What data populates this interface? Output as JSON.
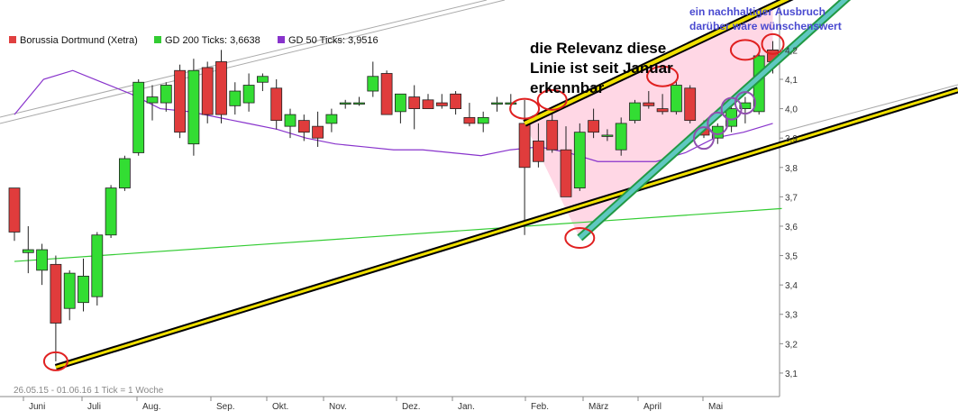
{
  "legend": [
    {
      "label": "Borussia Dortmund (Xetra)",
      "color": "#e04040"
    },
    {
      "label": "GD 200 Ticks: 3,6638",
      "color": "#33cc33"
    },
    {
      "label": "GD 50 Ticks: 3,9516",
      "color": "#8833cc"
    }
  ],
  "annotation_main": [
    "die Relevanz diese",
    "Linie ist seit Januar",
    "erkennbar"
  ],
  "annotation_blue": [
    "ein nachhaltiger Ausbruch",
    "darüber wäre wünschenswert"
  ],
  "footer": "26.05.15 - 01.06.16   1 Tick = 1 Woche",
  "colors": {
    "up": "#33dd33",
    "down": "#e03c3c",
    "ma200": "#33cc33",
    "ma50": "#8833cc",
    "trend": "#f0e000",
    "channel": "#5fc8c0",
    "circle_red": "#e02020",
    "circle_purple": "#9050b0",
    "triangle": "#ffd0e0"
  },
  "chart_data": {
    "type": "candlestick",
    "title": "",
    "x_range": [
      "26.05.15",
      "01.06.16"
    ],
    "x_tick_labels": [
      "Juni",
      "Juli",
      "Aug.",
      "Sep.",
      "Okt.",
      "Nov.",
      "Dez.",
      "Jan.",
      "Feb.",
      "März",
      "April",
      "Mai"
    ],
    "y_tick_labels": [
      "3,1",
      "3,2",
      "3,3",
      "3,4",
      "3,5",
      "3,6",
      "3,7",
      "3,8",
      "3,9",
      "4,0",
      "4,1",
      "4,2"
    ],
    "ylim": [
      3.02,
      4.37
    ],
    "grid": false,
    "legend_position": "top-left",
    "candles": [
      {
        "o": 3.73,
        "h": 3.73,
        "l": 3.55,
        "c": 3.58
      },
      {
        "o": 3.51,
        "h": 3.6,
        "l": 3.44,
        "c": 3.52
      },
      {
        "o": 3.45,
        "h": 3.54,
        "l": 3.4,
        "c": 3.52
      },
      {
        "o": 3.47,
        "h": 3.5,
        "l": 3.14,
        "c": 3.27
      },
      {
        "o": 3.32,
        "h": 3.45,
        "l": 3.28,
        "c": 3.44
      },
      {
        "o": 3.34,
        "h": 3.49,
        "l": 3.31,
        "c": 3.43
      },
      {
        "o": 3.36,
        "h": 3.58,
        "l": 3.33,
        "c": 3.57
      },
      {
        "o": 3.57,
        "h": 3.74,
        "l": 3.56,
        "c": 3.73
      },
      {
        "o": 3.73,
        "h": 3.84,
        "l": 3.72,
        "c": 3.83
      },
      {
        "o": 3.85,
        "h": 4.1,
        "l": 3.84,
        "c": 4.09
      },
      {
        "o": 4.02,
        "h": 4.08,
        "l": 3.96,
        "c": 4.04
      },
      {
        "o": 4.02,
        "h": 4.09,
        "l": 3.99,
        "c": 4.08
      },
      {
        "o": 4.13,
        "h": 4.15,
        "l": 3.9,
        "c": 3.92
      },
      {
        "o": 3.88,
        "h": 4.17,
        "l": 3.84,
        "c": 4.13
      },
      {
        "o": 4.14,
        "h": 4.16,
        "l": 3.95,
        "c": 3.98
      },
      {
        "o": 4.16,
        "h": 4.2,
        "l": 3.95,
        "c": 3.98
      },
      {
        "o": 4.01,
        "h": 4.09,
        "l": 3.98,
        "c": 4.06
      },
      {
        "o": 4.02,
        "h": 4.12,
        "l": 3.99,
        "c": 4.08
      },
      {
        "o": 4.09,
        "h": 4.12,
        "l": 4.06,
        "c": 4.11
      },
      {
        "o": 4.07,
        "h": 4.1,
        "l": 3.93,
        "c": 3.96
      },
      {
        "o": 3.94,
        "h": 4.0,
        "l": 3.9,
        "c": 3.98
      },
      {
        "o": 3.96,
        "h": 3.98,
        "l": 3.89,
        "c": 3.92
      },
      {
        "o": 3.94,
        "h": 3.99,
        "l": 3.87,
        "c": 3.9
      },
      {
        "o": 3.95,
        "h": 4.0,
        "l": 3.92,
        "c": 3.98
      },
      {
        "o": 4.02,
        "h": 4.03,
        "l": 4.0,
        "c": 4.02
      },
      {
        "o": 4.02,
        "h": 4.04,
        "l": 4.01,
        "c": 4.02
      },
      {
        "o": 4.06,
        "h": 4.16,
        "l": 4.04,
        "c": 4.11
      },
      {
        "o": 4.12,
        "h": 4.13,
        "l": 3.98,
        "c": 3.98
      },
      {
        "o": 3.99,
        "h": 4.05,
        "l": 3.95,
        "c": 4.05
      },
      {
        "o": 4.04,
        "h": 4.08,
        "l": 3.93,
        "c": 4.0
      },
      {
        "o": 4.03,
        "h": 4.05,
        "l": 4.0,
        "c": 4.0
      },
      {
        "o": 4.02,
        "h": 4.05,
        "l": 4.0,
        "c": 4.01
      },
      {
        "o": 4.05,
        "h": 4.06,
        "l": 3.98,
        "c": 4.0
      },
      {
        "o": 3.97,
        "h": 4.02,
        "l": 3.94,
        "c": 3.95
      },
      {
        "o": 3.95,
        "h": 3.99,
        "l": 3.92,
        "c": 3.97
      },
      {
        "o": 4.02,
        "h": 4.04,
        "l": 3.99,
        "c": 4.02
      },
      {
        "o": 4.02,
        "h": 4.05,
        "l": 4.0,
        "c": 4.02
      },
      {
        "o": 3.95,
        "h": 4.03,
        "l": 3.57,
        "c": 3.8
      },
      {
        "o": 3.89,
        "h": 3.95,
        "l": 3.8,
        "c": 3.82
      },
      {
        "o": 3.96,
        "h": 3.99,
        "l": 3.85,
        "c": 3.86
      },
      {
        "o": 3.86,
        "h": 3.94,
        "l": 3.7,
        "c": 3.7
      },
      {
        "o": 3.73,
        "h": 3.95,
        "l": 3.72,
        "c": 3.92
      },
      {
        "o": 3.96,
        "h": 4.0,
        "l": 3.9,
        "c": 3.92
      },
      {
        "o": 3.91,
        "h": 3.93,
        "l": 3.89,
        "c": 3.91
      },
      {
        "o": 3.86,
        "h": 3.97,
        "l": 3.84,
        "c": 3.95
      },
      {
        "o": 3.96,
        "h": 4.03,
        "l": 3.95,
        "c": 4.02
      },
      {
        "o": 4.02,
        "h": 4.06,
        "l": 4.0,
        "c": 4.01
      },
      {
        "o": 4.0,
        "h": 4.05,
        "l": 3.98,
        "c": 3.99
      },
      {
        "o": 3.99,
        "h": 4.1,
        "l": 3.98,
        "c": 4.08
      },
      {
        "o": 4.07,
        "h": 4.08,
        "l": 3.95,
        "c": 3.96
      },
      {
        "o": 3.94,
        "h": 3.96,
        "l": 3.9,
        "c": 3.91
      },
      {
        "o": 3.9,
        "h": 3.95,
        "l": 3.88,
        "c": 3.94
      },
      {
        "o": 3.94,
        "h": 4.01,
        "l": 3.92,
        "c": 4.0
      },
      {
        "o": 4.0,
        "h": 4.04,
        "l": 3.95,
        "c": 4.02
      },
      {
        "o": 3.99,
        "h": 4.19,
        "l": 3.98,
        "c": 4.18
      },
      {
        "o": 4.2,
        "h": 4.23,
        "l": 4.12,
        "c": 4.16
      }
    ],
    "ma200": {
      "start": 3.48,
      "end": 3.66
    },
    "ma50": [
      3.98,
      4.1,
      4.13,
      4.09,
      4.05,
      4.0,
      3.99,
      3.97,
      3.95,
      3.93,
      3.9,
      3.88,
      3.87,
      3.86,
      3.86,
      3.85,
      3.84,
      3.86,
      3.87,
      3.85,
      3.82,
      3.82,
      3.82,
      3.85,
      3.9,
      3.92,
      3.95
    ],
    "trendlines": [
      {
        "name": "support",
        "from": [
          3,
          3.12
        ],
        "to": [
          55,
          3.87
        ]
      },
      {
        "name": "upper",
        "from": [
          37,
          3.95
        ],
        "to": [
          55,
          4.35
        ]
      },
      {
        "name": "lower-channel",
        "from": [
          41,
          3.56
        ],
        "to": [
          55,
          4.15
        ]
      }
    ]
  }
}
